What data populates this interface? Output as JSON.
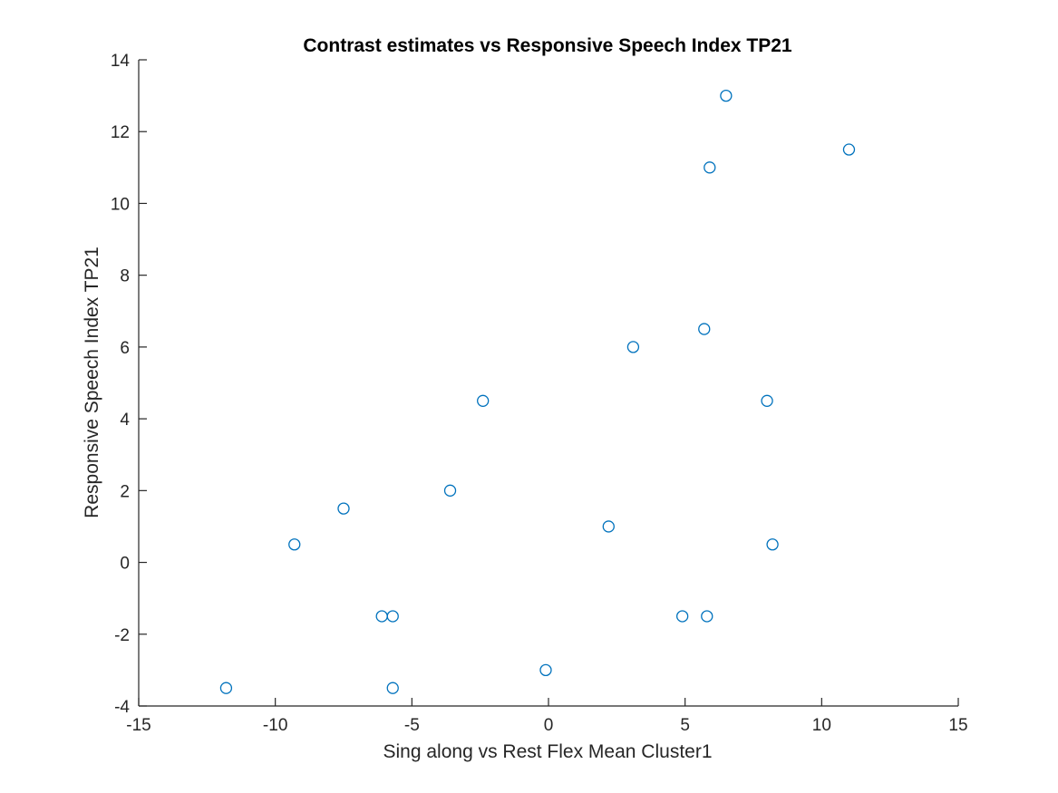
{
  "chart_data": {
    "type": "scatter",
    "title": "Contrast estimates vs  Responsive Speech Index TP21",
    "xlabel": "Sing along vs Rest Flex Mean Cluster1",
    "ylabel": "Responsive Speech Index TP21",
    "xlim": [
      -15,
      15
    ],
    "ylim": [
      -4,
      14
    ],
    "xticks": [
      -15,
      -10,
      -5,
      0,
      5,
      10,
      15
    ],
    "yticks": [
      -4,
      -2,
      0,
      2,
      4,
      6,
      8,
      10,
      12,
      14
    ],
    "xtick_labels": [
      "-15",
      "-10",
      "-5",
      "0",
      "5",
      "10",
      "15"
    ],
    "ytick_labels": [
      "-4",
      "-2",
      "0",
      "2",
      "4",
      "6",
      "8",
      "10",
      "12",
      "14"
    ],
    "grid": false,
    "marker": "circle-open",
    "color": "#0072BD",
    "series": [
      {
        "points": [
          [
            -11.8,
            -3.5
          ],
          [
            -9.3,
            0.5
          ],
          [
            -7.5,
            1.5
          ],
          [
            -6.1,
            -1.5
          ],
          [
            -5.7,
            -1.5
          ],
          [
            -5.7,
            -3.5
          ],
          [
            -3.6,
            2.0
          ],
          [
            -2.4,
            4.5
          ],
          [
            -0.1,
            -3.0
          ],
          [
            2.2,
            1.0
          ],
          [
            3.1,
            6.0
          ],
          [
            4.9,
            -1.5
          ],
          [
            5.7,
            6.5
          ],
          [
            5.8,
            -1.5
          ],
          [
            5.9,
            11.0
          ],
          [
            6.5,
            13.0
          ],
          [
            8.0,
            4.5
          ],
          [
            8.2,
            0.5
          ],
          [
            11.0,
            11.5
          ]
        ]
      }
    ]
  }
}
